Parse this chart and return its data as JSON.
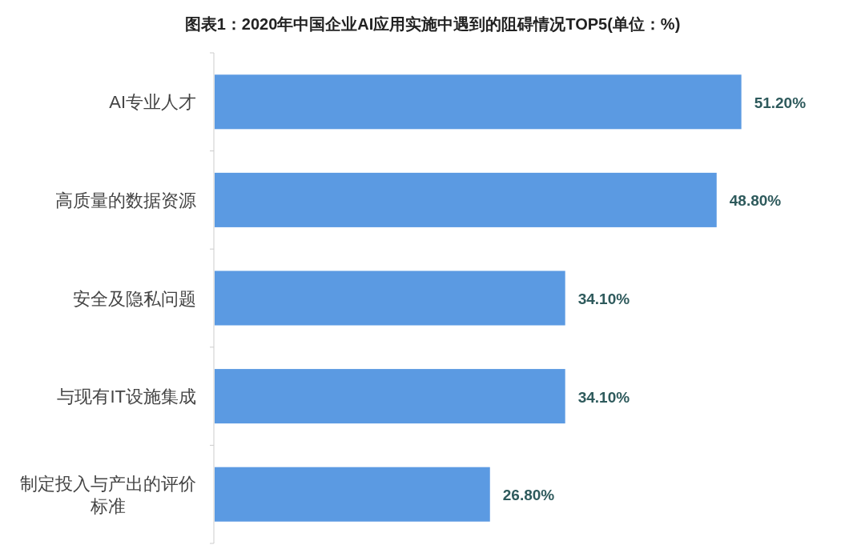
{
  "chart_data": {
    "type": "bar",
    "orientation": "horizontal",
    "title": "图表1：2020年中国企业AI应用实施中遇到的阻碍情况TOP5(单位：%)",
    "categories": [
      "AI专业人才",
      "高质量的数据资源",
      "安全及隐私问题",
      "与现有IT设施集成",
      "制定投入与产出的评价标准"
    ],
    "values": [
      51.2,
      48.8,
      34.1,
      34.1,
      26.8
    ],
    "color": "#5b9ae2",
    "value_labels": [
      "51.20%",
      "48.80%",
      "34.10%",
      "34.10%",
      "26.80%"
    ]
  }
}
